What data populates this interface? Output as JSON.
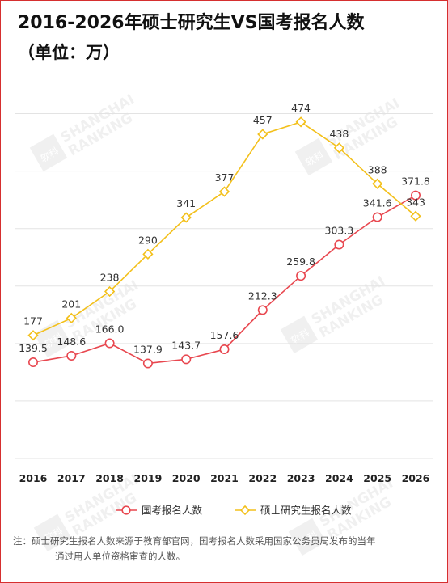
{
  "title": "2016-2026年硕士研究生VS国考报名人数",
  "subtitle": "（单位：万）",
  "note": {
    "line1": "注：硕士研究生报名人数来源于教育部官网，国考报名人数采用国家公务员局发布的当年",
    "line2": "通过用人单位资格审查的人数。"
  },
  "watermark": {
    "logo_text": "软科",
    "line1": "SHANGHAI",
    "line2": "RANKING"
  },
  "colors": {
    "gov_exam": "#e8474f",
    "grad_exam": "#f3c01b",
    "border": "#d62f2f"
  },
  "chart_data": {
    "type": "line",
    "title": "2016-2026年硕士研究生VS国考报名人数",
    "subtitle": "（单位：万）",
    "xlabel": "",
    "ylabel": "",
    "categories": [
      "2016",
      "2017",
      "2018",
      "2019",
      "2020",
      "2021",
      "2022",
      "2023",
      "2024",
      "2025",
      "2026"
    ],
    "ylim": [
      0,
      520
    ],
    "grid": true,
    "legend_position": "bottom",
    "series": [
      {
        "name": "国考报名人数",
        "color": "#e8474f",
        "marker": "circle",
        "values": [
          139.5,
          148.6,
          166.0,
          137.9,
          143.7,
          157.6,
          212.3,
          259.8,
          303.3,
          341.6,
          371.8
        ],
        "labels": [
          "139.5",
          "148.6",
          "166.0",
          "137.9",
          "143.7",
          "157.6",
          "212.3",
          "259.8",
          "303.3",
          "341.6",
          "371.8"
        ]
      },
      {
        "name": "硕士研究生报名人数",
        "color": "#f3c01b",
        "marker": "diamond",
        "values": [
          177,
          201,
          238,
          290,
          341,
          377,
          457,
          474,
          438,
          388,
          343
        ],
        "labels": [
          "177",
          "201",
          "238",
          "290",
          "341",
          "377",
          "457",
          "474",
          "438",
          "388",
          "343"
        ]
      }
    ]
  }
}
